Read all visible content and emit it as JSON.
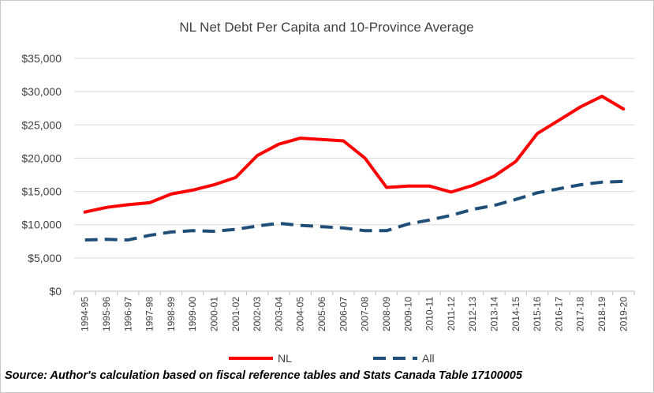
{
  "chart_data": {
    "type": "line",
    "title": "NL Net Debt Per Capita and 10-Province Average",
    "xlabel": "",
    "ylabel": "",
    "categories": [
      "1994-95",
      "1995-96",
      "1996-97",
      "1997-98",
      "1998-99",
      "1999-00",
      "2000-01",
      "2001-02",
      "2002-03",
      "2003-04",
      "2004-05",
      "2005-06",
      "2006-07",
      "2007-08",
      "2008-09",
      "2009-10",
      "2010-11",
      "2011-12",
      "2012-13",
      "2013-14",
      "2014-15",
      "2015-16",
      "2016-17",
      "2017-18",
      "2018-19",
      "2019-20"
    ],
    "y_ticks": [
      "$0",
      "$5,000",
      "$10,000",
      "$15,000",
      "$20,000",
      "$25,000",
      "$30,000",
      "$35,000"
    ],
    "ylim": [
      0,
      35000
    ],
    "grid": true,
    "legend_position": "bottom",
    "series": [
      {
        "name": "NL",
        "color": "#ff0000",
        "style": "solid",
        "values": [
          11900,
          12600,
          13000,
          13300,
          14600,
          15200,
          16000,
          17100,
          20400,
          22100,
          23000,
          22800,
          22600,
          20000,
          15600,
          15800,
          15800,
          14900,
          15900,
          17300,
          19500,
          23700,
          25700,
          27700,
          29300,
          27400
        ]
      },
      {
        "name": "All",
        "color": "#1f4e79",
        "style": "dashed",
        "values": [
          7700,
          7800,
          7700,
          8400,
          8900,
          9100,
          9000,
          9300,
          9800,
          10200,
          9900,
          9700,
          9500,
          9100,
          9100,
          10100,
          10700,
          11400,
          12300,
          12900,
          13800,
          14800,
          15400,
          16000,
          16400,
          16500
        ]
      }
    ]
  },
  "source_note": "Source: Author's calculation based on fiscal reference tables and Stats Canada Table 17100005"
}
